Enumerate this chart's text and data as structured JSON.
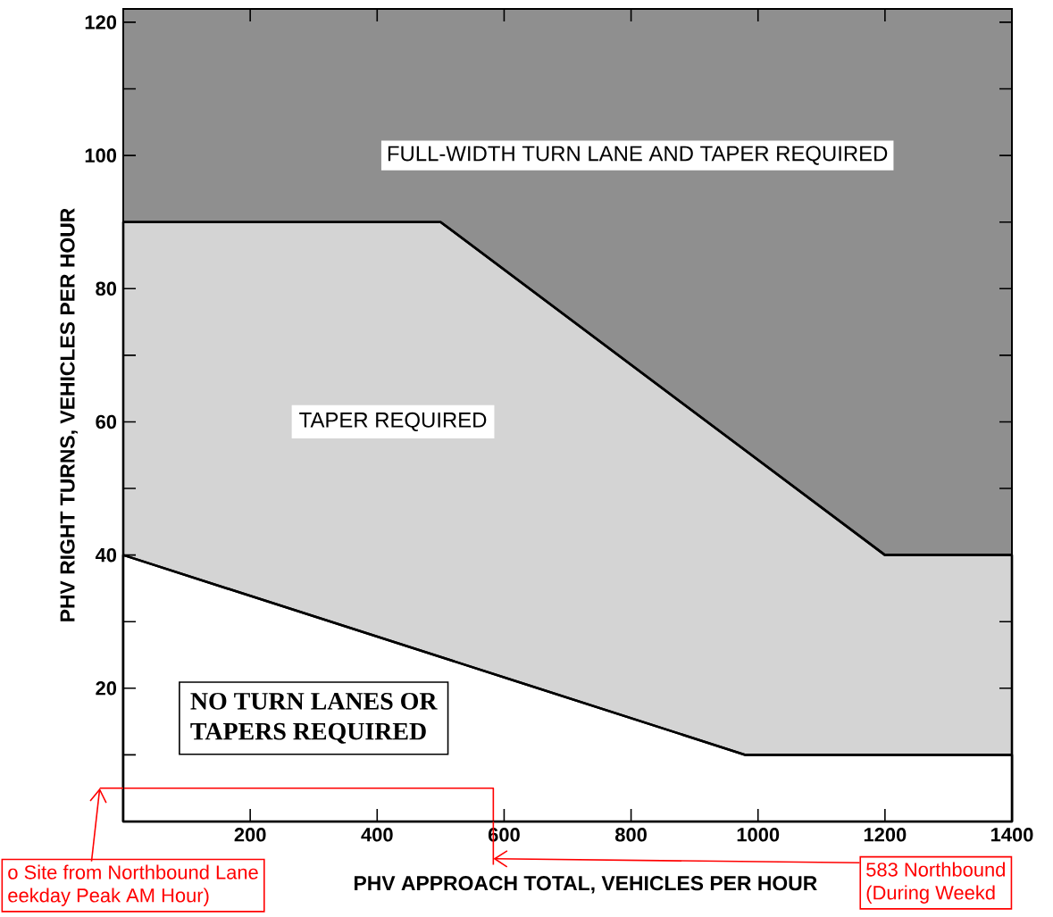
{
  "chart_data": {
    "type": "area",
    "xlabel": "PHV APPROACH TOTAL, VEHICLES PER HOUR",
    "ylabel": "PHV RIGHT TURNS, VEHICLES PER HOUR",
    "xlim": [
      0,
      1400
    ],
    "ylim": [
      0,
      122
    ],
    "xticks": [
      {
        "value": 0,
        "label": null
      },
      200,
      400,
      600,
      800,
      1000,
      1200,
      1400
    ],
    "yticks": [
      {
        "value": 10,
        "label": null
      },
      20,
      {
        "value": 30,
        "label": null
      },
      40,
      {
        "value": 50,
        "label": null
      },
      60,
      {
        "value": 70,
        "label": null
      },
      80,
      {
        "value": 90,
        "label": null
      },
      100,
      {
        "value": 110,
        "label": null
      },
      120
    ],
    "bands": [
      {
        "axis": "y",
        "from": 0,
        "to": 122,
        "color": "#8f8f8f"
      }
    ],
    "series": [
      {
        "color": "#d4d4d4",
        "x": [
          0,
          500,
          1200,
          1400
        ],
        "values": [
          90,
          90,
          40,
          40
        ]
      },
      {
        "color": "#ffffff",
        "x": [
          0,
          980,
          1400
        ],
        "values": [
          40,
          10,
          10
        ]
      },
      {
        "type": "line",
        "color": "#ff0000",
        "x": [
          0,
          583,
          583
        ],
        "values": [
          5,
          5,
          0
        ]
      }
    ],
    "annotations": [
      "FULL-WIDTH TURN LANE AND TAPER REQUIRED",
      "TAPER REQUIRED",
      "NO TURN LANES OR",
      "TAPERS REQUIRED",
      "o Site from Northbound Lane",
      "eekday Peak AM Hour)",
      "583 Northbound",
      "(During Weekd"
    ]
  }
}
